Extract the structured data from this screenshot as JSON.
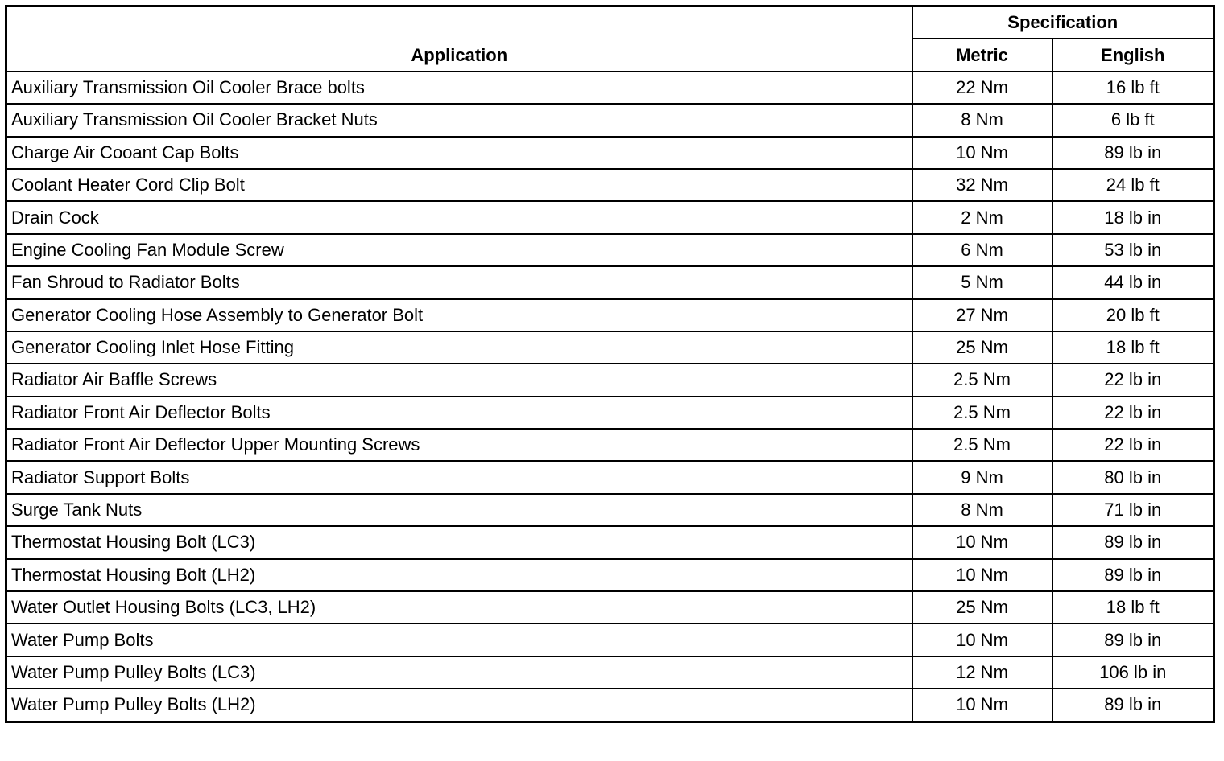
{
  "table": {
    "header": {
      "application": "Application",
      "specification": "Specification",
      "metric": "Metric",
      "english": "English"
    },
    "rows": [
      [
        "Auxiliary Transmission Oil Cooler Brace bolts",
        "22 Nm",
        "16 lb ft"
      ],
      [
        "Auxiliary Transmission Oil Cooler Bracket Nuts",
        "8 Nm",
        "6 lb ft"
      ],
      [
        "Charge Air Cooant Cap Bolts",
        "10 Nm",
        "89 lb in"
      ],
      [
        "Coolant Heater Cord Clip Bolt",
        "32 Nm",
        "24 lb ft"
      ],
      [
        "Drain Cock",
        "2 Nm",
        "18 lb in"
      ],
      [
        "Engine Cooling Fan Module Screw",
        "6 Nm",
        "53 lb in"
      ],
      [
        "Fan Shroud to Radiator Bolts",
        "5 Nm",
        "44 lb in"
      ],
      [
        "Generator Cooling Hose Assembly to Generator Bolt",
        "27 Nm",
        "20 lb ft"
      ],
      [
        "Generator Cooling Inlet Hose Fitting",
        "25 Nm",
        "18 lb ft"
      ],
      [
        "Radiator Air Baffle Screws",
        "2.5 Nm",
        "22 lb in"
      ],
      [
        "Radiator Front Air Deflector Bolts",
        "2.5 Nm",
        "22 lb in"
      ],
      [
        "Radiator Front Air Deflector Upper Mounting Screws",
        "2.5 Nm",
        "22 lb in"
      ],
      [
        "Radiator Support Bolts",
        "9 Nm",
        "80 lb in"
      ],
      [
        "Surge Tank Nuts",
        "8 Nm",
        "71 lb in"
      ],
      [
        "Thermostat Housing Bolt (LC3)",
        "10 Nm",
        "89 lb in"
      ],
      [
        "Thermostat Housing Bolt (LH2)",
        "10 Nm",
        "89 lb in"
      ],
      [
        "Water Outlet Housing Bolts (LC3, LH2)",
        "25 Nm",
        "18 lb ft"
      ],
      [
        "Water Pump Bolts",
        "10 Nm",
        "89 lb in"
      ],
      [
        "Water Pump Pulley Bolts (LC3)",
        "12 Nm",
        "106 lb in"
      ],
      [
        "Water Pump Pulley Bolts (LH2)",
        "10 Nm",
        "89 lb in"
      ]
    ]
  }
}
